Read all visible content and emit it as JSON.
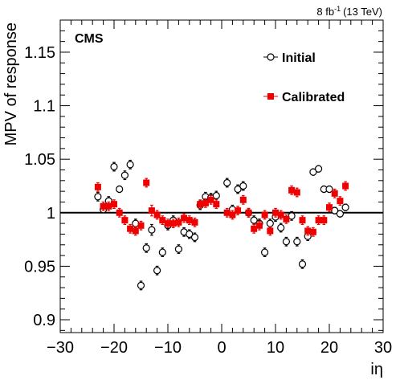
{
  "chart_data": {
    "type": "scatter",
    "lumi_value": "8 fb",
    "lumi_exp": "-1",
    "lumi_energy": "(13 TeV)",
    "experiment_label": "CMS",
    "xlabel": "iη",
    "ylabel": "MPV of response",
    "xlim": [
      -30,
      30
    ],
    "ylim": [
      0.888,
      1.18
    ],
    "xticks": [
      -30,
      -20,
      -10,
      0,
      10,
      20,
      30
    ],
    "xtick_labels": [
      "−30",
      "−20",
      "−10",
      "0",
      "10",
      "20",
      "30"
    ],
    "yticks": [
      0.9,
      0.95,
      1.0,
      1.05,
      1.1,
      1.15
    ],
    "ytick_labels": [
      "0.9",
      "0.95",
      "1",
      "1.05",
      "1.1",
      "1.15"
    ],
    "reference_line": 1.0,
    "legend_position": "top-right",
    "colors": {
      "initial": "#000000",
      "calibrated": "#ee0000"
    },
    "series": [
      {
        "name": "Initial",
        "marker": "open-circle",
        "x": [
          -23,
          -22,
          -21,
          -20,
          -19,
          -18,
          -17,
          -16,
          -15,
          -14,
          -13,
          -12,
          -11,
          -10,
          -9,
          -8,
          -7,
          -6,
          -5,
          -4,
          -3,
          -2,
          -1,
          1,
          2,
          3,
          4,
          5,
          6,
          7,
          8,
          9,
          10,
          11,
          12,
          13,
          14,
          15,
          16,
          17,
          18,
          19,
          20,
          21,
          22,
          23
        ],
        "y": [
          1.015,
          1.003,
          1.011,
          1.043,
          1.022,
          1.035,
          1.045,
          0.99,
          0.932,
          0.967,
          0.984,
          0.946,
          0.963,
          0.988,
          0.993,
          0.966,
          0.982,
          0.98,
          0.977,
          1.007,
          1.015,
          1.014,
          1.016,
          1.028,
          1.003,
          1.022,
          1.025,
          1.0,
          0.993,
          0.99,
          0.963,
          0.99,
          0.996,
          0.986,
          0.973,
          0.997,
          0.973,
          0.952,
          0.978,
          1.038,
          1.041,
          1.022,
          1.022,
          1.002,
          0.999,
          1.005
        ],
        "err": [
          0.004,
          0.003,
          0.004,
          0.004,
          0.003,
          0.004,
          0.004,
          0.004,
          0.004,
          0.004,
          0.005,
          0.004,
          0.004,
          0.004,
          0.004,
          0.004,
          0.004,
          0.004,
          0.004,
          0.004,
          0.004,
          0.004,
          0.004,
          0.004,
          0.004,
          0.004,
          0.004,
          0.004,
          0.004,
          0.004,
          0.004,
          0.004,
          0.004,
          0.004,
          0.004,
          0.004,
          0.004,
          0.004,
          0.004,
          0.003,
          0.003,
          0.003,
          0.003,
          0.003,
          0.003,
          0.003
        ]
      },
      {
        "name": "Calibrated",
        "marker": "filled-square",
        "x": [
          -23,
          -22,
          -21,
          -20,
          -19,
          -18,
          -17,
          -16,
          -15,
          -14,
          -13,
          -12,
          -11,
          -10,
          -9,
          -8,
          -7,
          -6,
          -5,
          -4,
          -3,
          -2,
          -1,
          1,
          2,
          3,
          4,
          5,
          6,
          7,
          8,
          9,
          10,
          11,
          12,
          13,
          14,
          15,
          16,
          17,
          18,
          19,
          20,
          21,
          22,
          23
        ],
        "y": [
          1.024,
          1.006,
          1.006,
          1.008,
          1.0,
          0.993,
          0.985,
          0.983,
          0.988,
          1.028,
          1.002,
          0.998,
          0.993,
          0.99,
          0.99,
          0.991,
          0.995,
          0.993,
          0.991,
          1.008,
          1.009,
          1.012,
          1.008,
          1.0,
          0.998,
          1.002,
          1.012,
          1.0,
          0.985,
          0.988,
          0.998,
          0.983,
          1.0,
          0.998,
          0.994,
          1.021,
          1.019,
          0.993,
          0.983,
          0.982,
          0.993,
          0.993,
          1.005,
          1.018,
          1.011,
          1.025
        ],
        "err": [
          0.004,
          0.004,
          0.004,
          0.004,
          0.004,
          0.004,
          0.004,
          0.004,
          0.004,
          0.004,
          0.005,
          0.004,
          0.004,
          0.004,
          0.004,
          0.004,
          0.004,
          0.004,
          0.004,
          0.004,
          0.004,
          0.004,
          0.004,
          0.004,
          0.004,
          0.004,
          0.004,
          0.004,
          0.004,
          0.004,
          0.004,
          0.004,
          0.004,
          0.004,
          0.004,
          0.004,
          0.004,
          0.004,
          0.004,
          0.004,
          0.004,
          0.004,
          0.004,
          0.004,
          0.004,
          0.004
        ]
      }
    ]
  }
}
